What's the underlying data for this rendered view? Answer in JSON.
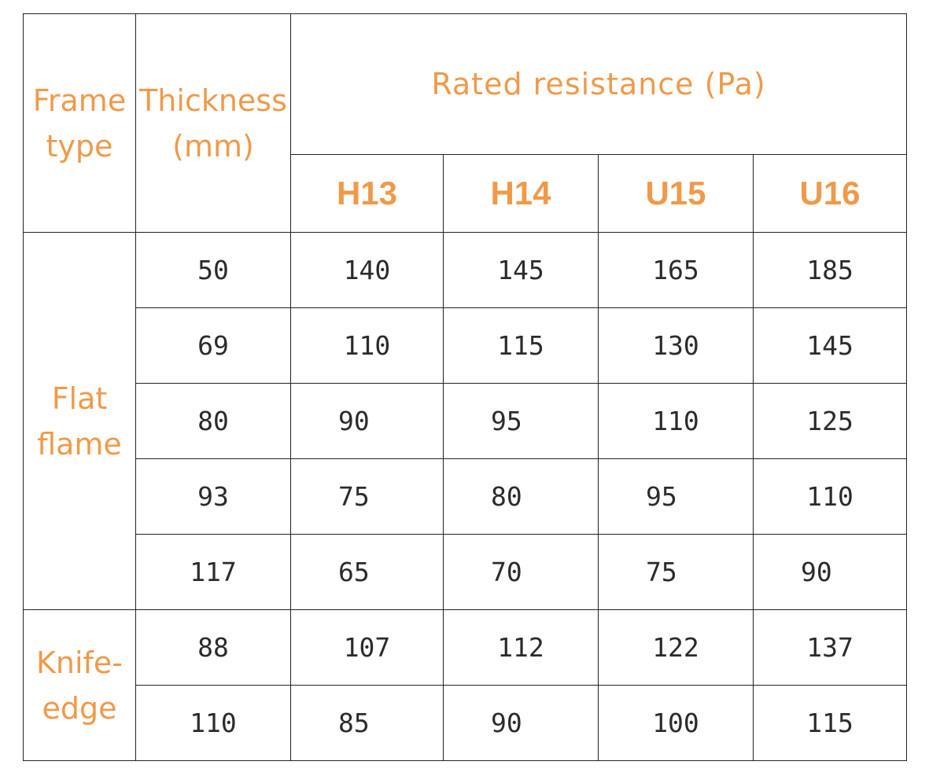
{
  "header": {
    "frame_type": [
      "Frame",
      "type"
    ],
    "thickness": [
      "Thickness",
      "(mm)"
    ],
    "rated_resistance": "Rated resistance (Pa)",
    "grades": [
      "H13",
      "H14",
      "U15",
      "U16"
    ]
  },
  "groups": [
    {
      "frame_type": [
        "Flat",
        "flame"
      ],
      "rows": [
        {
          "thickness": "50",
          "values": [
            "140",
            "145",
            "165",
            "185"
          ]
        },
        {
          "thickness": "69",
          "values": [
            "110",
            "115",
            "130",
            "145"
          ]
        },
        {
          "thickness": "80",
          "values": [
            "90",
            "95",
            "110",
            "125"
          ]
        },
        {
          "thickness": "93",
          "values": [
            "75",
            "80",
            "95",
            "110"
          ]
        },
        {
          "thickness": "117",
          "values": [
            "65",
            "70",
            "75",
            "90"
          ]
        }
      ]
    },
    {
      "frame_type": [
        "Knife-",
        "edge"
      ],
      "rows": [
        {
          "thickness": "88",
          "values": [
            "107",
            "112",
            "122",
            "137"
          ]
        },
        {
          "thickness": "110",
          "values": [
            "85",
            "90",
            "100",
            "115"
          ]
        }
      ]
    }
  ]
}
